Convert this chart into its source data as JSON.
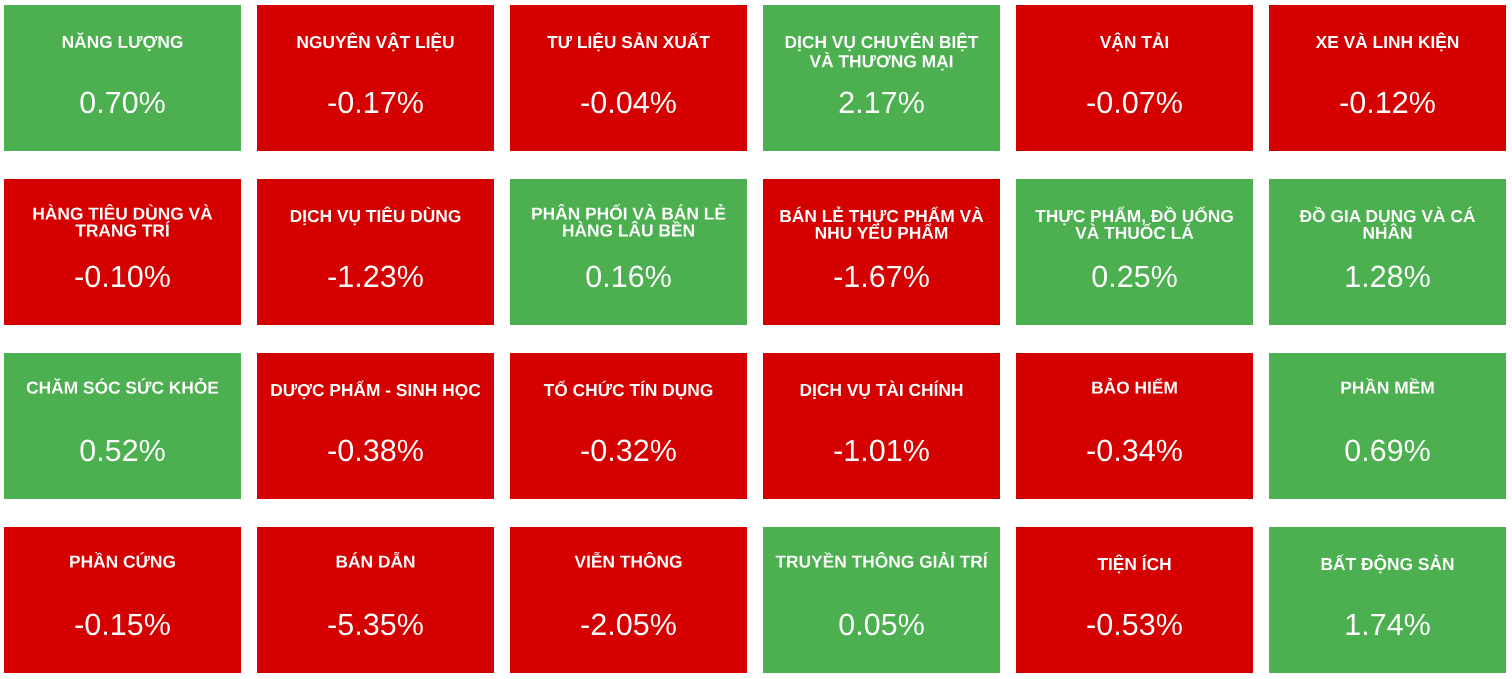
{
  "chart_data": {
    "type": "other",
    "categories": [
      "NĂNG LƯỢNG",
      "NGUYÊN VẬT LIỆU",
      "TƯ LIỆU SẢN XUẤT",
      "DỊCH VỤ CHUYÊN BIỆT VÀ THƯƠNG MẠI",
      "VẬN TẢI",
      "XE VÀ LINH KIỆN",
      "HÀNG TIÊU DÙNG VÀ TRANG TRÍ",
      "DỊCH VỤ TIÊU DÙNG",
      "PHÂN PHỐI VÀ BÁN LẺ HÀNG LÂU BỀN",
      "BÁN LẺ THỰC PHẨM VÀ NHU YẾU PHẨM",
      "THỰC PHẨM, ĐỒ UỐNG VÀ THUỐC LÁ",
      "ĐỒ GIA DỤNG VÀ CÁ NHÂN",
      "CHĂM SÓC SỨC KHỎE",
      "DƯỢC PHẨM - SINH HỌC",
      "TỔ CHỨC TÍN DỤNG",
      "DỊCH VỤ TÀI CHÍNH",
      "BẢO HIỂM",
      "PHẦN MỀM",
      "PHẦN CỨNG",
      "BÁN DẪN",
      "VIỄN THÔNG",
      "TRUYỀN THÔNG GIẢI TRÍ",
      "TIỆN ÍCH",
      "BẤT ĐỘNG SẢN"
    ],
    "values": [
      0.7,
      -0.17,
      -0.04,
      2.17,
      -0.07,
      -0.12,
      -0.1,
      -1.23,
      0.16,
      -1.67,
      0.25,
      1.28,
      0.52,
      -0.38,
      -0.32,
      -1.01,
      -0.34,
      0.69,
      -0.15,
      -5.35,
      -2.05,
      0.05,
      -0.53,
      1.74
    ],
    "value_labels": [
      "0.70%",
      "-0.17%",
      "-0.04%",
      "2.17%",
      "-0.07%",
      "-0.12%",
      "-0.10%",
      "-1.23%",
      "0.16%",
      "-1.67%",
      "0.25%",
      "1.28%",
      "0.52%",
      "-0.38%",
      "-0.32%",
      "-1.01%",
      "-0.34%",
      "0.69%",
      "-0.15%",
      "-5.35%",
      "-2.05%",
      "0.05%",
      "-0.53%",
      "1.74%"
    ],
    "colors": [
      "#4caf50",
      "#d50000",
      "#d50000",
      "#4caf50",
      "#d50000",
      "#d50000",
      "#d50000",
      "#d50000",
      "#4caf50",
      "#d50000",
      "#4caf50",
      "#4caf50",
      "#4caf50",
      "#d50000",
      "#d50000",
      "#d50000",
      "#d50000",
      "#4caf50",
      "#d50000",
      "#d50000",
      "#d50000",
      "#4caf50",
      "#d50000",
      "#4caf50"
    ]
  }
}
